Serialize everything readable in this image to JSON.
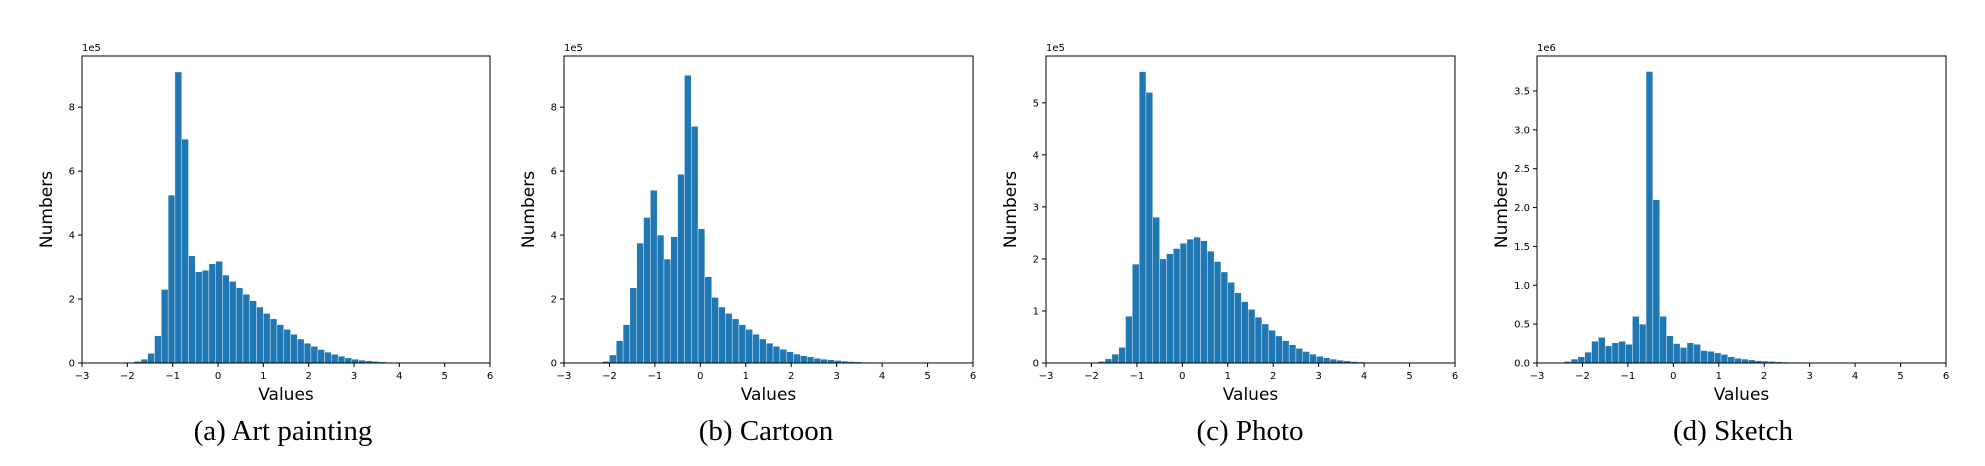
{
  "chart_data": [
    {
      "type": "bar",
      "caption": "(a) Art painting",
      "xlabel": "Values",
      "ylabel": "Numbers",
      "scale_label": "1e5",
      "xlim": [
        -3,
        6
      ],
      "ylim": [
        0,
        9.6
      ],
      "xticks": [
        -3,
        -2,
        -1,
        0,
        1,
        2,
        3,
        4,
        5,
        6
      ],
      "yticks": [
        0,
        2,
        4,
        6,
        8
      ],
      "bin_start": -2.0,
      "bin_width": 0.15,
      "values": [
        0.02,
        0.05,
        0.12,
        0.3,
        0.85,
        2.3,
        5.25,
        9.1,
        7.0,
        3.35,
        2.85,
        2.9,
        3.1,
        3.18,
        2.75,
        2.55,
        2.35,
        2.15,
        1.95,
        1.75,
        1.55,
        1.38,
        1.2,
        1.05,
        0.9,
        0.75,
        0.62,
        0.52,
        0.42,
        0.34,
        0.27,
        0.21,
        0.16,
        0.12,
        0.09,
        0.07,
        0.05,
        0.035,
        0.025,
        0.018,
        0.012,
        0.008,
        0.005,
        0.003
      ]
    },
    {
      "type": "bar",
      "caption": "(b) Cartoon",
      "xlabel": "Values",
      "ylabel": "Numbers",
      "scale_label": "1e5",
      "xlim": [
        -3,
        6
      ],
      "ylim": [
        0,
        9.6
      ],
      "xticks": [
        -3,
        -2,
        -1,
        0,
        1,
        2,
        3,
        4,
        5,
        6
      ],
      "yticks": [
        0,
        2,
        4,
        6,
        8
      ],
      "bin_start": -2.15,
      "bin_width": 0.15,
      "values": [
        0.05,
        0.25,
        0.7,
        1.2,
        2.35,
        3.75,
        4.55,
        5.4,
        4.0,
        3.25,
        3.95,
        5.9,
        9.0,
        7.4,
        4.2,
        2.7,
        2.05,
        1.75,
        1.55,
        1.38,
        1.2,
        1.05,
        0.9,
        0.75,
        0.62,
        0.52,
        0.43,
        0.35,
        0.28,
        0.23,
        0.19,
        0.15,
        0.12,
        0.1,
        0.08,
        0.06,
        0.045,
        0.035,
        0.025,
        0.018,
        0.012,
        0.008,
        0.005,
        0.003,
        0.002
      ]
    },
    {
      "type": "bar",
      "caption": "(c) Photo",
      "xlabel": "Values",
      "ylabel": "Numbers",
      "scale_label": "1e5",
      "xlim": [
        -3,
        6
      ],
      "ylim": [
        0,
        5.9
      ],
      "xticks": [
        -3,
        -2,
        -1,
        0,
        1,
        2,
        3,
        4,
        5,
        6
      ],
      "yticks": [
        0,
        1,
        2,
        3,
        4,
        5
      ],
      "bin_start": -2.0,
      "bin_width": 0.15,
      "values": [
        0.01,
        0.03,
        0.08,
        0.17,
        0.3,
        0.9,
        1.9,
        5.6,
        5.2,
        2.8,
        2.0,
        2.1,
        2.2,
        2.3,
        2.38,
        2.42,
        2.35,
        2.15,
        1.95,
        1.75,
        1.55,
        1.35,
        1.18,
        1.03,
        0.88,
        0.75,
        0.63,
        0.52,
        0.43,
        0.35,
        0.28,
        0.22,
        0.17,
        0.13,
        0.1,
        0.075,
        0.055,
        0.04,
        0.028,
        0.02,
        0.014,
        0.009,
        0.006,
        0.004
      ]
    },
    {
      "type": "bar",
      "caption": "(d) Sketch",
      "xlabel": "Values",
      "ylabel": "Numbers",
      "scale_label": "1e6",
      "xlim": [
        -3,
        6
      ],
      "ylim": [
        0,
        3.95
      ],
      "xticks": [
        -3,
        -2,
        -1,
        0,
        1,
        2,
        3,
        4,
        5,
        6
      ],
      "yticks": [
        0.0,
        0.5,
        1.0,
        1.5,
        2.0,
        2.5,
        3.0,
        3.5
      ],
      "bin_start": -2.4,
      "bin_width": 0.15,
      "values": [
        0.02,
        0.05,
        0.08,
        0.14,
        0.28,
        0.33,
        0.22,
        0.26,
        0.28,
        0.24,
        0.6,
        0.5,
        3.75,
        2.1,
        0.6,
        0.35,
        0.25,
        0.2,
        0.26,
        0.24,
        0.16,
        0.15,
        0.13,
        0.11,
        0.08,
        0.06,
        0.05,
        0.04,
        0.03,
        0.025,
        0.02,
        0.015,
        0.012,
        0.01,
        0.008,
        0.006,
        0.004,
        0.003,
        0.002,
        0.001
      ]
    }
  ]
}
